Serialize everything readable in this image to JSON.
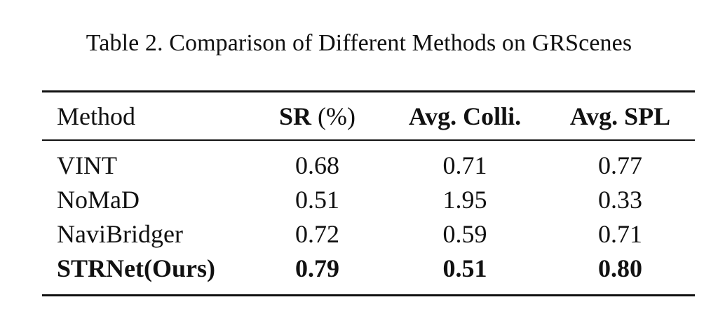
{
  "caption": "Table 2. Comparison of Different Methods on GRScenes",
  "table": {
    "headers": {
      "method": "Method",
      "sr_bold": "SR",
      "sr_unit": "(%)",
      "colli": "Avg. Colli.",
      "spl": "Avg. SPL"
    },
    "rows": [
      {
        "method": "VINT",
        "sr": "0.68",
        "colli": "0.71",
        "spl": "0.77"
      },
      {
        "method": "NoMaD",
        "sr": "0.51",
        "colli": "1.95",
        "spl": "0.33"
      },
      {
        "method": "NaviBridger",
        "sr": "0.72",
        "colli": "0.59",
        "spl": "0.71"
      },
      {
        "method": "STRNet(Ours)",
        "sr": "0.79",
        "colli": "0.51",
        "spl": "0.80"
      }
    ]
  }
}
